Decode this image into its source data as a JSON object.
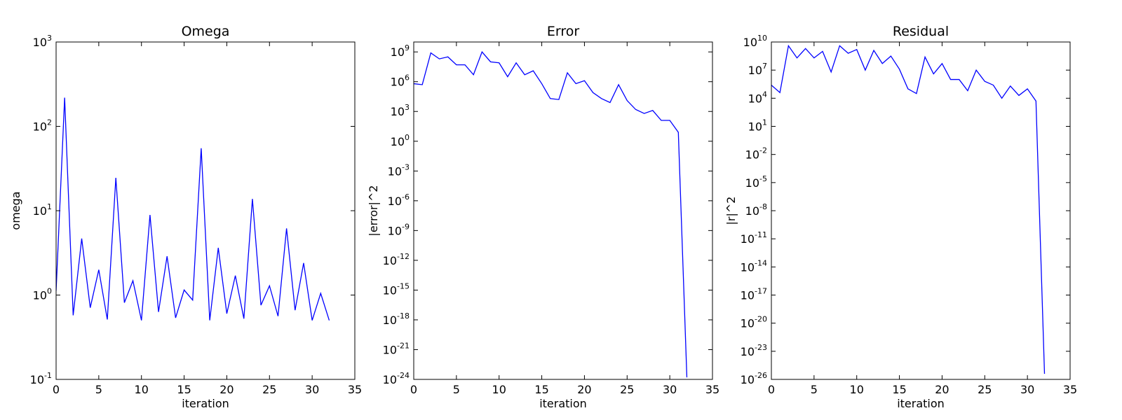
{
  "line_color": "#0000ff",
  "chart_data": [
    {
      "type": "line",
      "title": "Omega",
      "xlabel": "iteration",
      "ylabel": "omega",
      "yscale": "log",
      "xlim": [
        0,
        35
      ],
      "ylim_exp": [
        -1,
        3
      ],
      "x_ticks": [
        0,
        5,
        10,
        15,
        20,
        25,
        30,
        35
      ],
      "x_tick_labels": [
        "0",
        "5",
        "10",
        "15",
        "20",
        "25",
        "30",
        "35"
      ],
      "y_tick_exps": [
        -1,
        0,
        1,
        2,
        3
      ],
      "y_tick_labels": [
        "-1",
        "0",
        "1",
        "2",
        "3"
      ],
      "grid": false,
      "series": [
        {
          "x": [
            0,
            1,
            2,
            3,
            4,
            5,
            6,
            7,
            8,
            9,
            10,
            11,
            12,
            13,
            14,
            15,
            16,
            17,
            18,
            19,
            20,
            21,
            22,
            23,
            24,
            25,
            26,
            27,
            28,
            29,
            30,
            31,
            32
          ],
          "log10_y": [
            0.05,
            2.34,
            -0.24,
            0.67,
            -0.15,
            0.3,
            -0.29,
            1.39,
            -0.09,
            0.17,
            -0.3,
            0.95,
            -0.2,
            0.46,
            -0.27,
            0.06,
            -0.06,
            1.74,
            -0.3,
            0.56,
            -0.22,
            0.23,
            -0.28,
            1.14,
            -0.12,
            0.11,
            -0.25,
            0.79,
            -0.18,
            0.38,
            -0.3,
            0.02,
            -0.3
          ]
        }
      ]
    },
    {
      "type": "line",
      "title": "Error",
      "xlabel": "iteration",
      "ylabel": "|error|^2",
      "yscale": "log",
      "xlim": [
        0,
        35
      ],
      "ylim_exp": [
        -24,
        10
      ],
      "x_ticks": [
        0,
        5,
        10,
        15,
        20,
        25,
        30,
        35
      ],
      "x_tick_labels": [
        "0",
        "5",
        "10",
        "15",
        "20",
        "25",
        "30",
        "35"
      ],
      "y_tick_exps": [
        -24,
        -21,
        -18,
        -15,
        -12,
        -9,
        -6,
        -3,
        0,
        3,
        6,
        9
      ],
      "y_tick_labels": [
        "-24",
        "-21",
        "-18",
        "-15",
        "-12",
        "-9",
        "-6",
        "-3",
        "0",
        "3",
        "6",
        "9"
      ],
      "grid": false,
      "series": [
        {
          "x": [
            0,
            1,
            2,
            3,
            4,
            5,
            6,
            7,
            8,
            9,
            10,
            11,
            12,
            13,
            14,
            15,
            16,
            17,
            18,
            19,
            20,
            21,
            22,
            23,
            24,
            25,
            26,
            27,
            28,
            29,
            30,
            31,
            32
          ],
          "log10_y": [
            5.8,
            5.7,
            8.9,
            8.3,
            8.5,
            7.7,
            7.7,
            6.7,
            9.0,
            8.0,
            7.9,
            6.5,
            7.9,
            6.7,
            7.1,
            5.8,
            4.3,
            4.2,
            6.9,
            5.8,
            6.1,
            4.9,
            4.3,
            3.9,
            5.7,
            4.1,
            3.2,
            2.8,
            3.1,
            2.1,
            2.1,
            0.9,
            -23.8
          ]
        }
      ]
    },
    {
      "type": "line",
      "title": "Residual",
      "xlabel": "iteration",
      "ylabel": "|r|^2",
      "yscale": "log",
      "xlim": [
        0,
        35
      ],
      "ylim_exp": [
        -26,
        10
      ],
      "x_ticks": [
        0,
        5,
        10,
        15,
        20,
        25,
        30,
        35
      ],
      "x_tick_labels": [
        "0",
        "5",
        "10",
        "15",
        "20",
        "25",
        "30",
        "35"
      ],
      "y_tick_exps": [
        -26,
        -23,
        -20,
        -17,
        -14,
        -11,
        -8,
        -5,
        -2,
        1,
        4,
        7,
        10
      ],
      "y_tick_labels": [
        "-26",
        "-23",
        "-20",
        "-17",
        "-14",
        "-11",
        "-8",
        "-5",
        "-2",
        "1",
        "4",
        "7",
        "10"
      ],
      "grid": false,
      "series": [
        {
          "x": [
            0,
            1,
            2,
            3,
            4,
            5,
            6,
            7,
            8,
            9,
            10,
            11,
            12,
            13,
            14,
            15,
            16,
            17,
            18,
            19,
            20,
            21,
            22,
            23,
            24,
            25,
            26,
            27,
            28,
            29,
            30,
            31,
            32
          ],
          "log10_y": [
            5.4,
            4.6,
            9.6,
            8.3,
            9.3,
            8.3,
            9.0,
            6.8,
            9.6,
            8.8,
            9.2,
            7.0,
            9.1,
            7.7,
            8.5,
            7.1,
            5.0,
            4.5,
            8.4,
            6.6,
            7.7,
            6.0,
            6.0,
            4.8,
            7.0,
            5.8,
            5.4,
            4.0,
            5.3,
            4.3,
            5.0,
            3.7,
            -25.4
          ]
        }
      ]
    }
  ]
}
